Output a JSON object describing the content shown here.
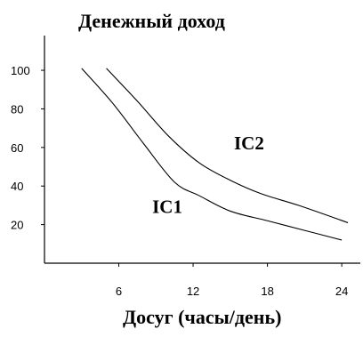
{
  "chart_data": {
    "type": "line",
    "title": "Денежный доход",
    "xlabel": "Досуг (часы/день)",
    "ylabel": "",
    "xlim": [
      0,
      25.5
    ],
    "ylim": [
      0,
      118
    ],
    "x_ticks": [
      6,
      12,
      18,
      24
    ],
    "y_ticks": [
      20,
      40,
      60,
      80,
      100
    ],
    "grid": false,
    "series": [
      {
        "name": "IC1",
        "label": "IC1",
        "label_at": [
          8.7,
          26
        ],
        "color": "#000000",
        "points": [
          [
            3.0,
            101
          ],
          [
            5.5,
            83
          ],
          [
            8.0,
            62
          ],
          [
            10.5,
            42
          ],
          [
            12.5,
            35
          ],
          [
            15.0,
            27
          ],
          [
            18.0,
            22
          ],
          [
            21.0,
            17
          ],
          [
            24.0,
            12
          ]
        ]
      },
      {
        "name": "IC2",
        "label": "IC2",
        "label_at": [
          15.3,
          59
        ],
        "color": "#000000",
        "points": [
          [
            5.0,
            101
          ],
          [
            7.5,
            84
          ],
          [
            10.0,
            66
          ],
          [
            12.5,
            52
          ],
          [
            15.0,
            43
          ],
          [
            17.5,
            36
          ],
          [
            20.5,
            30
          ],
          [
            24.5,
            21
          ]
        ]
      }
    ]
  }
}
